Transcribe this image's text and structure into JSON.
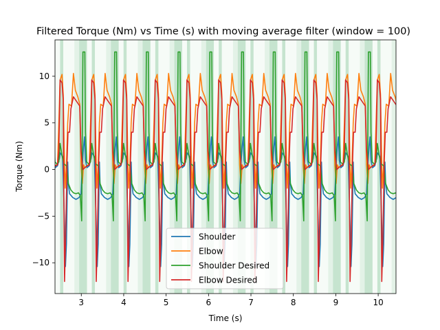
{
  "chart_data": {
    "type": "line",
    "title": "Filtered Torque (Nm) vs Time (s) with moving average filter (window = 100)",
    "xlabel": "Time (s)",
    "ylabel": "Torque (Nm)",
    "xlim": [
      2.38,
      10.42
    ],
    "ylim": [
      -13.3,
      13.9
    ],
    "xticks": [
      3,
      4,
      5,
      6,
      7,
      8,
      9,
      10
    ],
    "xtick_labels": [
      "3",
      "4",
      "5",
      "6",
      "7",
      "8",
      "9",
      "10"
    ],
    "yticks": [
      -10,
      -5,
      0,
      5,
      10
    ],
    "ytick_labels": [
      "−10",
      "−5",
      "0",
      "5",
      "10"
    ],
    "grid": false,
    "legend_position": "lower-center",
    "cycle": {
      "start": 2.5,
      "period": 0.748,
      "count": 11
    },
    "shaded_phases": [
      {
        "from": 0.0,
        "to": 0.1,
        "color": "#c6e4cf"
      },
      {
        "from": 0.1,
        "to": 0.45,
        "color": "#f6fbf7"
      },
      {
        "from": 0.45,
        "to": 0.6,
        "color": "#e3f2e7"
      },
      {
        "from": 0.6,
        "to": 0.85,
        "color": "#c6e4cf"
      },
      {
        "from": 0.85,
        "to": 1.0,
        "color": "#f6fbf7"
      }
    ],
    "series": [
      {
        "name": "Shoulder",
        "color": "#1f77b4",
        "pattern": [
          [
            0.0,
            1.8
          ],
          [
            0.08,
            1.4
          ],
          [
            0.14,
            -6.0
          ],
          [
            0.17,
            -10.4
          ],
          [
            0.2,
            -8.0
          ],
          [
            0.24,
            0.8
          ],
          [
            0.26,
            -1.5
          ],
          [
            0.3,
            -2.6
          ],
          [
            0.4,
            -3.0
          ],
          [
            0.5,
            -3.2
          ],
          [
            0.6,
            -3.0
          ],
          [
            0.66,
            -2.6
          ],
          [
            0.7,
            0.5
          ],
          [
            0.74,
            2.5
          ],
          [
            0.77,
            3.5
          ],
          [
            0.8,
            1.0
          ],
          [
            0.85,
            0.2
          ],
          [
            0.92,
            0.4
          ],
          [
            0.98,
            1.2
          ],
          [
            1.0,
            1.8
          ]
        ]
      },
      {
        "name": "Elbow",
        "color": "#ff7f0e",
        "pattern": [
          [
            0.0,
            9.6
          ],
          [
            0.06,
            10.2
          ],
          [
            0.1,
            8.0
          ],
          [
            0.13,
            2.0
          ],
          [
            0.16,
            -2.0
          ],
          [
            0.2,
            0.5
          ],
          [
            0.24,
            5.0
          ],
          [
            0.28,
            7.0
          ],
          [
            0.36,
            6.8
          ],
          [
            0.42,
            10.3
          ],
          [
            0.48,
            8.5
          ],
          [
            0.56,
            7.8
          ],
          [
            0.62,
            7.0
          ],
          [
            0.64,
            4.0
          ],
          [
            0.66,
            0.5
          ],
          [
            0.7,
            -1.5
          ],
          [
            0.74,
            0.5
          ],
          [
            0.78,
            0.2
          ],
          [
            0.85,
            0.4
          ],
          [
            0.92,
            0.6
          ],
          [
            0.96,
            5.0
          ],
          [
            1.0,
            9.6
          ]
        ]
      },
      {
        "name": "Shoulder Desired",
        "color": "#2ca02c",
        "pattern": [
          [
            0.0,
            2.8
          ],
          [
            0.06,
            1.5
          ],
          [
            0.12,
            0.6
          ],
          [
            0.2,
            0.4
          ],
          [
            0.26,
            -1.5
          ],
          [
            0.34,
            -2.2
          ],
          [
            0.42,
            -2.5
          ],
          [
            0.5,
            -2.6
          ],
          [
            0.58,
            -2.5
          ],
          [
            0.64,
            -2.8
          ],
          [
            0.68,
            -5.5
          ],
          [
            0.72,
            12.6
          ],
          [
            0.78,
            12.6
          ],
          [
            0.8,
            4.0
          ],
          [
            0.84,
            0.8
          ],
          [
            0.9,
            0.6
          ],
          [
            0.96,
            0.8
          ],
          [
            1.0,
            2.8
          ]
        ]
      },
      {
        "name": "Elbow Desired",
        "color": "#d62728",
        "pattern": [
          [
            0.0,
            9.6
          ],
          [
            0.06,
            9.3
          ],
          [
            0.1,
            7.5
          ],
          [
            0.12,
            -3.0
          ],
          [
            0.14,
            -12.0
          ],
          [
            0.17,
            -8.0
          ],
          [
            0.22,
            1.0
          ],
          [
            0.25,
            4.0
          ],
          [
            0.3,
            4.0
          ],
          [
            0.34,
            6.5
          ],
          [
            0.42,
            7.8
          ],
          [
            0.5,
            7.4
          ],
          [
            0.58,
            7.0
          ],
          [
            0.62,
            6.8
          ],
          [
            0.66,
            2.0
          ],
          [
            0.72,
            0.0
          ],
          [
            0.78,
            0.2
          ],
          [
            0.86,
            0.4
          ],
          [
            0.92,
            0.5
          ],
          [
            0.96,
            2.0
          ],
          [
            1.0,
            9.6
          ]
        ]
      }
    ]
  }
}
